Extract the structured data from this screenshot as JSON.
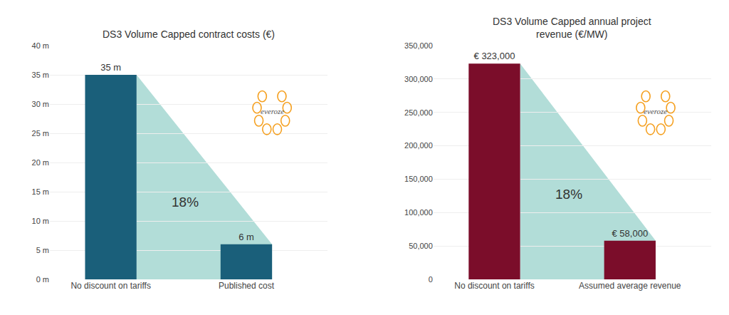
{
  "chart_data": [
    {
      "type": "bar",
      "title": "DS3 Volume Capped contract costs (€)",
      "categories": [
        "No discount on tariffs",
        "Published cost"
      ],
      "values": [
        35,
        6
      ],
      "value_labels": [
        "35 m",
        "6 m"
      ],
      "data_labels": true,
      "color": "#1a5f7a",
      "ylim": [
        0,
        40
      ],
      "yticks": [
        {
          "value": 0,
          "label": "0 m"
        },
        {
          "value": 5,
          "label": "5 m"
        },
        {
          "value": 10,
          "label": "10 m"
        },
        {
          "value": 15,
          "label": "15 m"
        },
        {
          "value": 20,
          "label": "20 m"
        },
        {
          "value": 25,
          "label": "25 m"
        },
        {
          "value": 30,
          "label": "30 m"
        },
        {
          "value": 35,
          "label": "35 m"
        },
        {
          "value": 40,
          "label": "40 m"
        }
      ],
      "grid": true,
      "annotations": [
        {
          "text": "18%"
        },
        {
          "text": "everoze"
        }
      ]
    },
    {
      "type": "bar",
      "title": "DS3 Volume Capped annual project\nrevenue (€/MW)",
      "categories": [
        "No discount on tariffs",
        "Assumed average revenue"
      ],
      "values": [
        323000,
        58000
      ],
      "value_labels": [
        "€ 323,000",
        "€ 58,000"
      ],
      "data_labels": true,
      "color": "#7b0d2a",
      "ylim": [
        0,
        350000
      ],
      "yticks": [
        0,
        {
          "value": 50000,
          "label": "50,000"
        },
        {
          "value": 100000,
          "label": "100,000"
        },
        {
          "value": 150000,
          "label": "150,000"
        },
        {
          "value": 200000,
          "label": "200,000"
        },
        {
          "value": 250000,
          "label": "250,000"
        },
        {
          "value": 300000,
          "label": "300,000"
        },
        {
          "value": 350000,
          "label": "350,000"
        }
      ],
      "grid": true,
      "annotations": [
        {
          "text": "18%"
        },
        {
          "text": "everoze"
        }
      ]
    }
  ]
}
